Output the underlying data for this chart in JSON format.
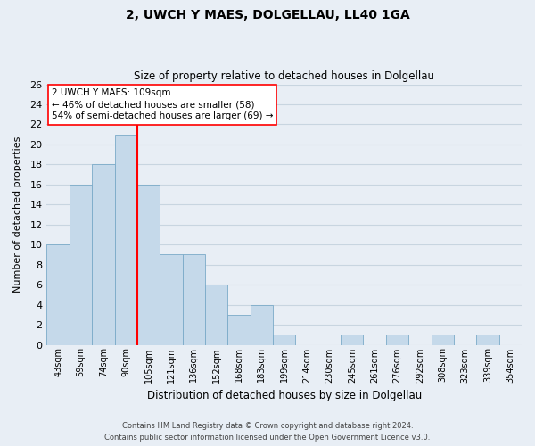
{
  "title": "2, UWCH Y MAES, DOLGELLAU, LL40 1GA",
  "subtitle": "Size of property relative to detached houses in Dolgellau",
  "xlabel": "Distribution of detached houses by size in Dolgellau",
  "ylabel": "Number of detached properties",
  "bar_labels": [
    "43sqm",
    "59sqm",
    "74sqm",
    "90sqm",
    "105sqm",
    "121sqm",
    "136sqm",
    "152sqm",
    "168sqm",
    "183sqm",
    "199sqm",
    "214sqm",
    "230sqm",
    "245sqm",
    "261sqm",
    "276sqm",
    "292sqm",
    "308sqm",
    "323sqm",
    "339sqm",
    "354sqm"
  ],
  "bar_values": [
    10,
    16,
    18,
    21,
    16,
    9,
    9,
    6,
    3,
    4,
    1,
    0,
    0,
    1,
    0,
    1,
    0,
    1,
    0,
    1,
    0
  ],
  "bar_color": "#c5d9ea",
  "bar_edge_color": "#7aaac8",
  "ylim": [
    0,
    26
  ],
  "yticks": [
    0,
    2,
    4,
    6,
    8,
    10,
    12,
    14,
    16,
    18,
    20,
    22,
    24,
    26
  ],
  "red_line_bar_index": 3,
  "red_line_side": "right",
  "annotation_title": "2 UWCH Y MAES: 109sqm",
  "annotation_line1": "← 46% of detached houses are smaller (58)",
  "annotation_line2": "54% of semi-detached houses are larger (69) →",
  "footer_line1": "Contains HM Land Registry data © Crown copyright and database right 2024.",
  "footer_line2": "Contains public sector information licensed under the Open Government Licence v3.0.",
  "background_color": "#e8eef5",
  "plot_bg_color": "#e8eef5",
  "grid_color": "#c8d5e0"
}
